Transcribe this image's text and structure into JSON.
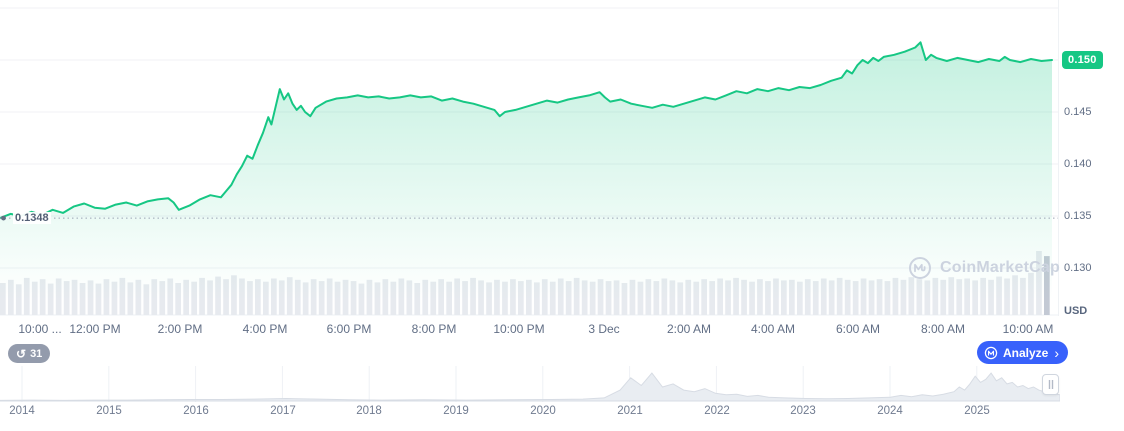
{
  "colors": {
    "green": "#16c784",
    "blue": "#3861fb",
    "axis_text": "#616e85",
    "watermark": "#ccd3df"
  },
  "controls": {
    "history_count": "31",
    "analyze_label": "Analyze",
    "watermark_text": "CoinMarketCap"
  },
  "chart_data": {
    "type": "line",
    "symbol_unit": "USD",
    "current_price_label": "0.150",
    "open_price_label": "0.1348",
    "current_price": 0.15,
    "open_price": 0.1348,
    "ylim": [
      0.1285,
      0.1555
    ],
    "y_tick_labels": [
      "0.150",
      "0.145",
      "0.140",
      "0.135",
      "0.130"
    ],
    "x_ticks": [
      "10:00 ...",
      "12:00 PM",
      "2:00 PM",
      "4:00 PM",
      "6:00 PM",
      "8:00 PM",
      "10:00 PM",
      "3 Dec",
      "2:00 AM",
      "4:00 AM",
      "6:00 AM",
      "8:00 AM",
      "10:00 AM"
    ],
    "line_color": "#16c784",
    "area_top": "rgba(22,199,132,0.26)",
    "area_bottom": "rgba(22,199,132,0)",
    "volume_color": "#e7eaef",
    "volume_last_color": "#c3c9d4",
    "series": [
      {
        "name": "price",
        "x": [
          0,
          0.01,
          0.02,
          0.03,
          0.04,
          0.05,
          0.06,
          0.07,
          0.08,
          0.09,
          0.1,
          0.11,
          0.12,
          0.13,
          0.14,
          0.15,
          0.16,
          0.165,
          0.17,
          0.18,
          0.19,
          0.2,
          0.21,
          0.215,
          0.22,
          0.225,
          0.23,
          0.235,
          0.24,
          0.245,
          0.25,
          0.255,
          0.258,
          0.262,
          0.266,
          0.27,
          0.274,
          0.278,
          0.282,
          0.286,
          0.29,
          0.295,
          0.3,
          0.31,
          0.32,
          0.33,
          0.34,
          0.35,
          0.36,
          0.37,
          0.38,
          0.39,
          0.4,
          0.41,
          0.42,
          0.43,
          0.44,
          0.45,
          0.46,
          0.47,
          0.475,
          0.48,
          0.49,
          0.5,
          0.51,
          0.52,
          0.53,
          0.54,
          0.55,
          0.56,
          0.57,
          0.575,
          0.58,
          0.59,
          0.6,
          0.61,
          0.62,
          0.63,
          0.64,
          0.65,
          0.66,
          0.67,
          0.68,
          0.69,
          0.7,
          0.71,
          0.72,
          0.73,
          0.74,
          0.75,
          0.76,
          0.77,
          0.78,
          0.79,
          0.8,
          0.805,
          0.81,
          0.815,
          0.82,
          0.825,
          0.83,
          0.835,
          0.84,
          0.85,
          0.86,
          0.87,
          0.875,
          0.88,
          0.885,
          0.89,
          0.9,
          0.91,
          0.92,
          0.93,
          0.94,
          0.95,
          0.955,
          0.96,
          0.97,
          0.98,
          0.99,
          1.0
        ],
        "y": [
          0.1348,
          0.1352,
          0.135,
          0.1354,
          0.1351,
          0.1356,
          0.1353,
          0.1359,
          0.1362,
          0.1358,
          0.1357,
          0.1361,
          0.1363,
          0.136,
          0.1364,
          0.1366,
          0.1367,
          0.1363,
          0.1356,
          0.136,
          0.1366,
          0.137,
          0.1368,
          0.1374,
          0.138,
          0.139,
          0.1398,
          0.1408,
          0.1405,
          0.1418,
          0.143,
          0.1445,
          0.1438,
          0.1455,
          0.1472,
          0.1462,
          0.1468,
          0.1458,
          0.1452,
          0.1456,
          0.145,
          0.1446,
          0.1454,
          0.146,
          0.1463,
          0.1464,
          0.1466,
          0.1464,
          0.1465,
          0.1463,
          0.1464,
          0.1466,
          0.1464,
          0.1465,
          0.1461,
          0.1463,
          0.146,
          0.1458,
          0.1455,
          0.1452,
          0.1446,
          0.145,
          0.1452,
          0.1455,
          0.1458,
          0.1461,
          0.1459,
          0.1462,
          0.1464,
          0.1466,
          0.1469,
          0.1464,
          0.146,
          0.1462,
          0.1458,
          0.1456,
          0.1454,
          0.1457,
          0.1455,
          0.1458,
          0.1461,
          0.1464,
          0.1462,
          0.1466,
          0.147,
          0.1468,
          0.1472,
          0.147,
          0.1473,
          0.1471,
          0.1474,
          0.1473,
          0.1476,
          0.148,
          0.1483,
          0.149,
          0.1487,
          0.1495,
          0.15,
          0.1497,
          0.1502,
          0.1499,
          0.1503,
          0.1505,
          0.1508,
          0.1512,
          0.1517,
          0.15,
          0.1505,
          0.1502,
          0.1499,
          0.1502,
          0.15,
          0.1498,
          0.1501,
          0.1499,
          0.1503,
          0.15,
          0.1498,
          0.1501,
          0.1499,
          0.15
        ]
      },
      {
        "name": "volume",
        "values": [
          0.5,
          0.55,
          0.48,
          0.58,
          0.52,
          0.56,
          0.49,
          0.57,
          0.53,
          0.55,
          0.5,
          0.54,
          0.49,
          0.56,
          0.52,
          0.58,
          0.51,
          0.55,
          0.48,
          0.56,
          0.53,
          0.57,
          0.5,
          0.55,
          0.52,
          0.58,
          0.54,
          0.6,
          0.56,
          0.62,
          0.57,
          0.53,
          0.56,
          0.52,
          0.57,
          0.54,
          0.59,
          0.55,
          0.51,
          0.56,
          0.53,
          0.57,
          0.52,
          0.55,
          0.53,
          0.49,
          0.55,
          0.51,
          0.56,
          0.52,
          0.57,
          0.54,
          0.5,
          0.55,
          0.52,
          0.56,
          0.52,
          0.57,
          0.53,
          0.58,
          0.54,
          0.51,
          0.55,
          0.52,
          0.56,
          0.53,
          0.55,
          0.51,
          0.56,
          0.52,
          0.57,
          0.53,
          0.58,
          0.54,
          0.52,
          0.56,
          0.53,
          0.54,
          0.5,
          0.55,
          0.52,
          0.56,
          0.53,
          0.57,
          0.54,
          0.51,
          0.55,
          0.52,
          0.56,
          0.53,
          0.57,
          0.54,
          0.58,
          0.55,
          0.52,
          0.56,
          0.53,
          0.57,
          0.54,
          0.55,
          0.52,
          0.56,
          0.53,
          0.57,
          0.54,
          0.58,
          0.55,
          0.53,
          0.57,
          0.54,
          0.56,
          0.53,
          0.58,
          0.55,
          0.59,
          0.56,
          0.54,
          0.58,
          0.55,
          0.59,
          0.56,
          0.57,
          0.54,
          0.58,
          0.55,
          0.6,
          0.57,
          0.62,
          0.58,
          0.66,
          1.0,
          0.92
        ]
      }
    ],
    "navigator": {
      "years": [
        "2014",
        "2015",
        "2016",
        "2017",
        "2018",
        "2019",
        "2020",
        "2021",
        "2022",
        "2023",
        "2024",
        "2025"
      ],
      "x": [
        0,
        0.03,
        0.06,
        0.09,
        0.12,
        0.15,
        0.18,
        0.21,
        0.24,
        0.27,
        0.28,
        0.3,
        0.33,
        0.36,
        0.4,
        0.44,
        0.48,
        0.52,
        0.55,
        0.57,
        0.585,
        0.595,
        0.605,
        0.615,
        0.625,
        0.635,
        0.645,
        0.655,
        0.665,
        0.675,
        0.685,
        0.695,
        0.705,
        0.715,
        0.725,
        0.74,
        0.76,
        0.78,
        0.8,
        0.82,
        0.84,
        0.85,
        0.86,
        0.87,
        0.88,
        0.89,
        0.9,
        0.905,
        0.91,
        0.915,
        0.92,
        0.925,
        0.93,
        0.935,
        0.94,
        0.945,
        0.95,
        0.955,
        0.96,
        0.965,
        0.97,
        0.975,
        0.98,
        0.985,
        0.99,
        1.0
      ],
      "h": [
        0.02,
        0.03,
        0.02,
        0.03,
        0.03,
        0.04,
        0.05,
        0.05,
        0.06,
        0.08,
        0.07,
        0.06,
        0.04,
        0.03,
        0.04,
        0.03,
        0.04,
        0.05,
        0.06,
        0.1,
        0.35,
        0.75,
        0.5,
        0.9,
        0.45,
        0.55,
        0.35,
        0.3,
        0.4,
        0.25,
        0.2,
        0.22,
        0.15,
        0.18,
        0.12,
        0.1,
        0.08,
        0.07,
        0.08,
        0.1,
        0.12,
        0.18,
        0.14,
        0.2,
        0.16,
        0.22,
        0.3,
        0.45,
        0.35,
        0.55,
        0.8,
        0.6,
        0.7,
        0.9,
        0.65,
        0.75,
        0.55,
        0.6,
        0.45,
        0.5,
        0.4,
        0.45,
        0.35,
        0.3,
        0.25,
        0.2
      ]
    }
  }
}
